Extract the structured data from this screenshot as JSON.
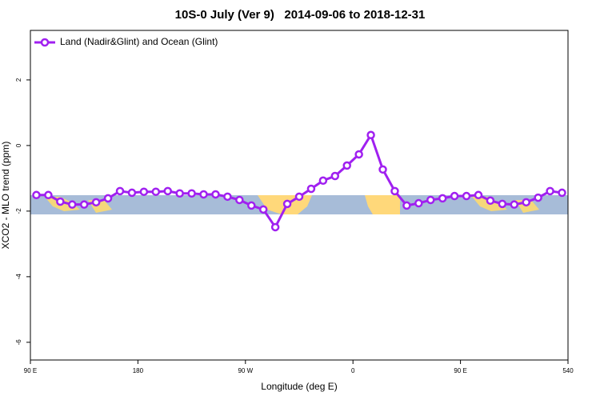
{
  "chart_data": {
    "type": "line",
    "title": "10S-0 July (Ver 9)   2014-09-06 to 2018-12-31",
    "x_label": "Longitude (deg E)",
    "y_label": "XCO2 - MLO trend (ppm)",
    "xlim": [
      90,
      540
    ],
    "ylim": [
      -6.54,
      3.51
    ],
    "xticks": [
      {
        "value": 90,
        "label": "90 E"
      },
      180,
      {
        "value": 270,
        "label": "90 W"
      },
      {
        "value": 360,
        "label": "0"
      },
      {
        "value": 450,
        "label": "90 E"
      },
      540
    ],
    "yticks": [
      2,
      0,
      -2,
      -4,
      -6
    ],
    "legend": "top-left",
    "x": [
      95,
      105,
      115,
      125,
      135,
      145,
      155,
      165,
      175,
      185,
      195,
      205,
      215,
      225,
      235,
      245,
      255,
      265,
      275,
      285,
      295,
      305,
      315,
      325,
      335,
      345,
      355,
      365,
      375,
      385,
      395,
      405,
      415,
      425,
      435,
      445,
      455,
      465,
      475,
      485,
      495,
      505,
      515,
      525,
      535
    ],
    "series": [
      {
        "name": "Land (Nadir&Glint) and Ocean (Glint)",
        "color": "#a020f0",
        "values": [
          -1.51,
          -1.51,
          -1.71,
          -1.8,
          -1.8,
          -1.73,
          -1.61,
          -1.39,
          -1.44,
          -1.41,
          -1.41,
          -1.39,
          -1.46,
          -1.46,
          -1.49,
          -1.49,
          -1.56,
          -1.66,
          -1.83,
          -1.95,
          -2.49,
          -1.78,
          -1.56,
          -1.32,
          -1.07,
          -0.93,
          -0.61,
          -0.27,
          0.32,
          -0.73,
          -1.39,
          -1.83,
          -1.76,
          -1.66,
          -1.61,
          -1.54,
          -1.54,
          -1.51,
          -1.68,
          -1.78,
          -1.8,
          -1.73,
          -1.59,
          -1.39,
          -1.44
        ]
      }
    ]
  }
}
